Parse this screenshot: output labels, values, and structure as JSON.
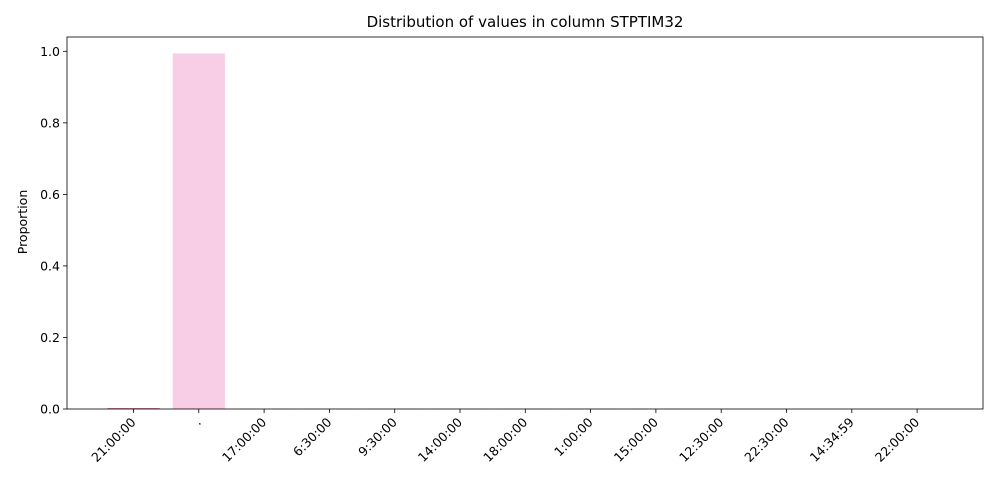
{
  "chart_data": {
    "type": "bar",
    "title": "Distribution of values in column STPTIM32",
    "xlabel": "",
    "ylabel": "Proportion",
    "ylim": [
      0,
      1.04
    ],
    "yticks": [
      0.0,
      0.2,
      0.4,
      0.6,
      0.8,
      1.0
    ],
    "ytick_labels": [
      "0.0",
      "0.2",
      "0.4",
      "0.6",
      "0.8",
      "1.0"
    ],
    "categories": [
      "21:00:00",
      ".",
      "17:00:00",
      "6:30:00",
      "9:30:00",
      "14:00:00",
      "18:00:00",
      "1:00:00",
      "15:00:00",
      "12:30:00",
      "22:30:00",
      "14:34:59",
      "22:00:00"
    ],
    "values": [
      0.002,
      0.994,
      0.0005,
      0.0003,
      0.0003,
      0.0002,
      0.0002,
      0.0002,
      0.0002,
      0.0001,
      0.0001,
      0.0001,
      0.0001
    ],
    "bar_colors": [
      "#c2185b",
      "#f8cde6",
      "#f8cde6",
      "#f8cde6",
      "#f8cde6",
      "#f8cde6",
      "#f8cde6",
      "#f8cde6",
      "#f8cde6",
      "#f8cde6",
      "#f8cde6",
      "#f8cde6",
      "#f8cde6"
    ],
    "grid": false,
    "legend": "none"
  }
}
